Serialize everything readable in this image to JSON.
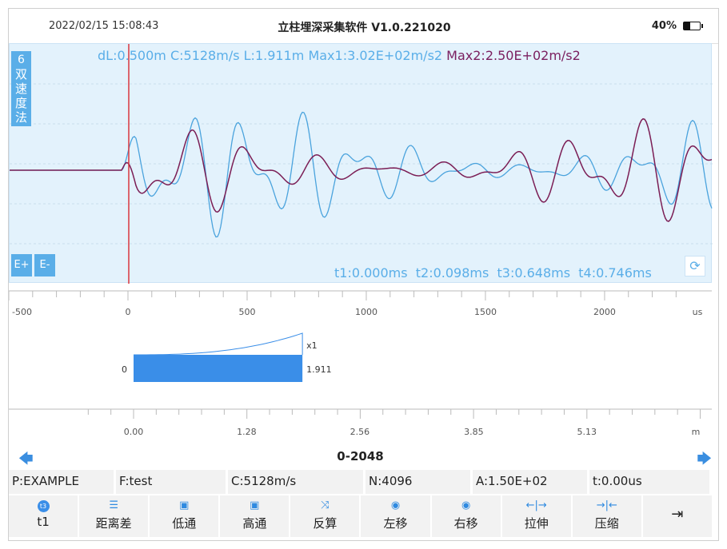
{
  "status": {
    "time": "2022/02/15 15:08:43",
    "title": "立柱埋深采集软件 V1.0.221020",
    "battery": "40%"
  },
  "wave_panel": {
    "method_number": "6",
    "method_label": [
      "双",
      "速",
      "度",
      "法"
    ],
    "info": {
      "dl": "dL:0.500m",
      "c": "C:5128m/s",
      "l": "L:1.911m",
      "max1": "Max1:3.02E+02m/s2",
      "max2": "Max2:2.50E+02m/s2"
    },
    "times": {
      "t1": "t1:0.000ms",
      "t2": "t2:0.098ms",
      "t3": "t3:0.648ms",
      "t4": "t4:0.746ms"
    },
    "e_plus": "E+",
    "e_minus": "E-",
    "refresh_icon": "refresh-icon",
    "colors": {
      "background": "#e3f2fc",
      "series1": "#4aa3dd",
      "series2": "#7b1e55",
      "marker": "#d9363e"
    }
  },
  "time_axis": {
    "ticks": [
      "-500",
      "0",
      "500",
      "1000",
      "1500",
      "2000"
    ],
    "unit": "us",
    "range": [
      -500,
      2500
    ]
  },
  "depth_chart": {
    "start_label": "0",
    "scale_label": "x1",
    "value_label": "1.911",
    "depth_value": 1.911,
    "axis_ticks": [
      "0.00",
      "1.28",
      "2.56",
      "3.85",
      "5.13"
    ],
    "unit": "m",
    "axis_max": 6.41,
    "bar_color": "#3a8ee8"
  },
  "page": {
    "range": "0-2048",
    "left_arrow": "arrow-left-icon",
    "right_arrow": "arrow-right-icon"
  },
  "params": {
    "p": "P:EXAMPLE",
    "f": "F:test",
    "c": "C:5128m/s",
    "n": "N:4096",
    "a": "A:1.50E+02",
    "t": "t:0.00us"
  },
  "toolbar": {
    "t1": "t1",
    "t1_icon": "t3",
    "distance": "距离差",
    "lowpass": "低通",
    "highpass": "高通",
    "inverse": "反算",
    "shift_left": "左移",
    "shift_right": "右移",
    "stretch": "拉伸",
    "compress": "压缩",
    "exit_icon": "exit-icon"
  }
}
